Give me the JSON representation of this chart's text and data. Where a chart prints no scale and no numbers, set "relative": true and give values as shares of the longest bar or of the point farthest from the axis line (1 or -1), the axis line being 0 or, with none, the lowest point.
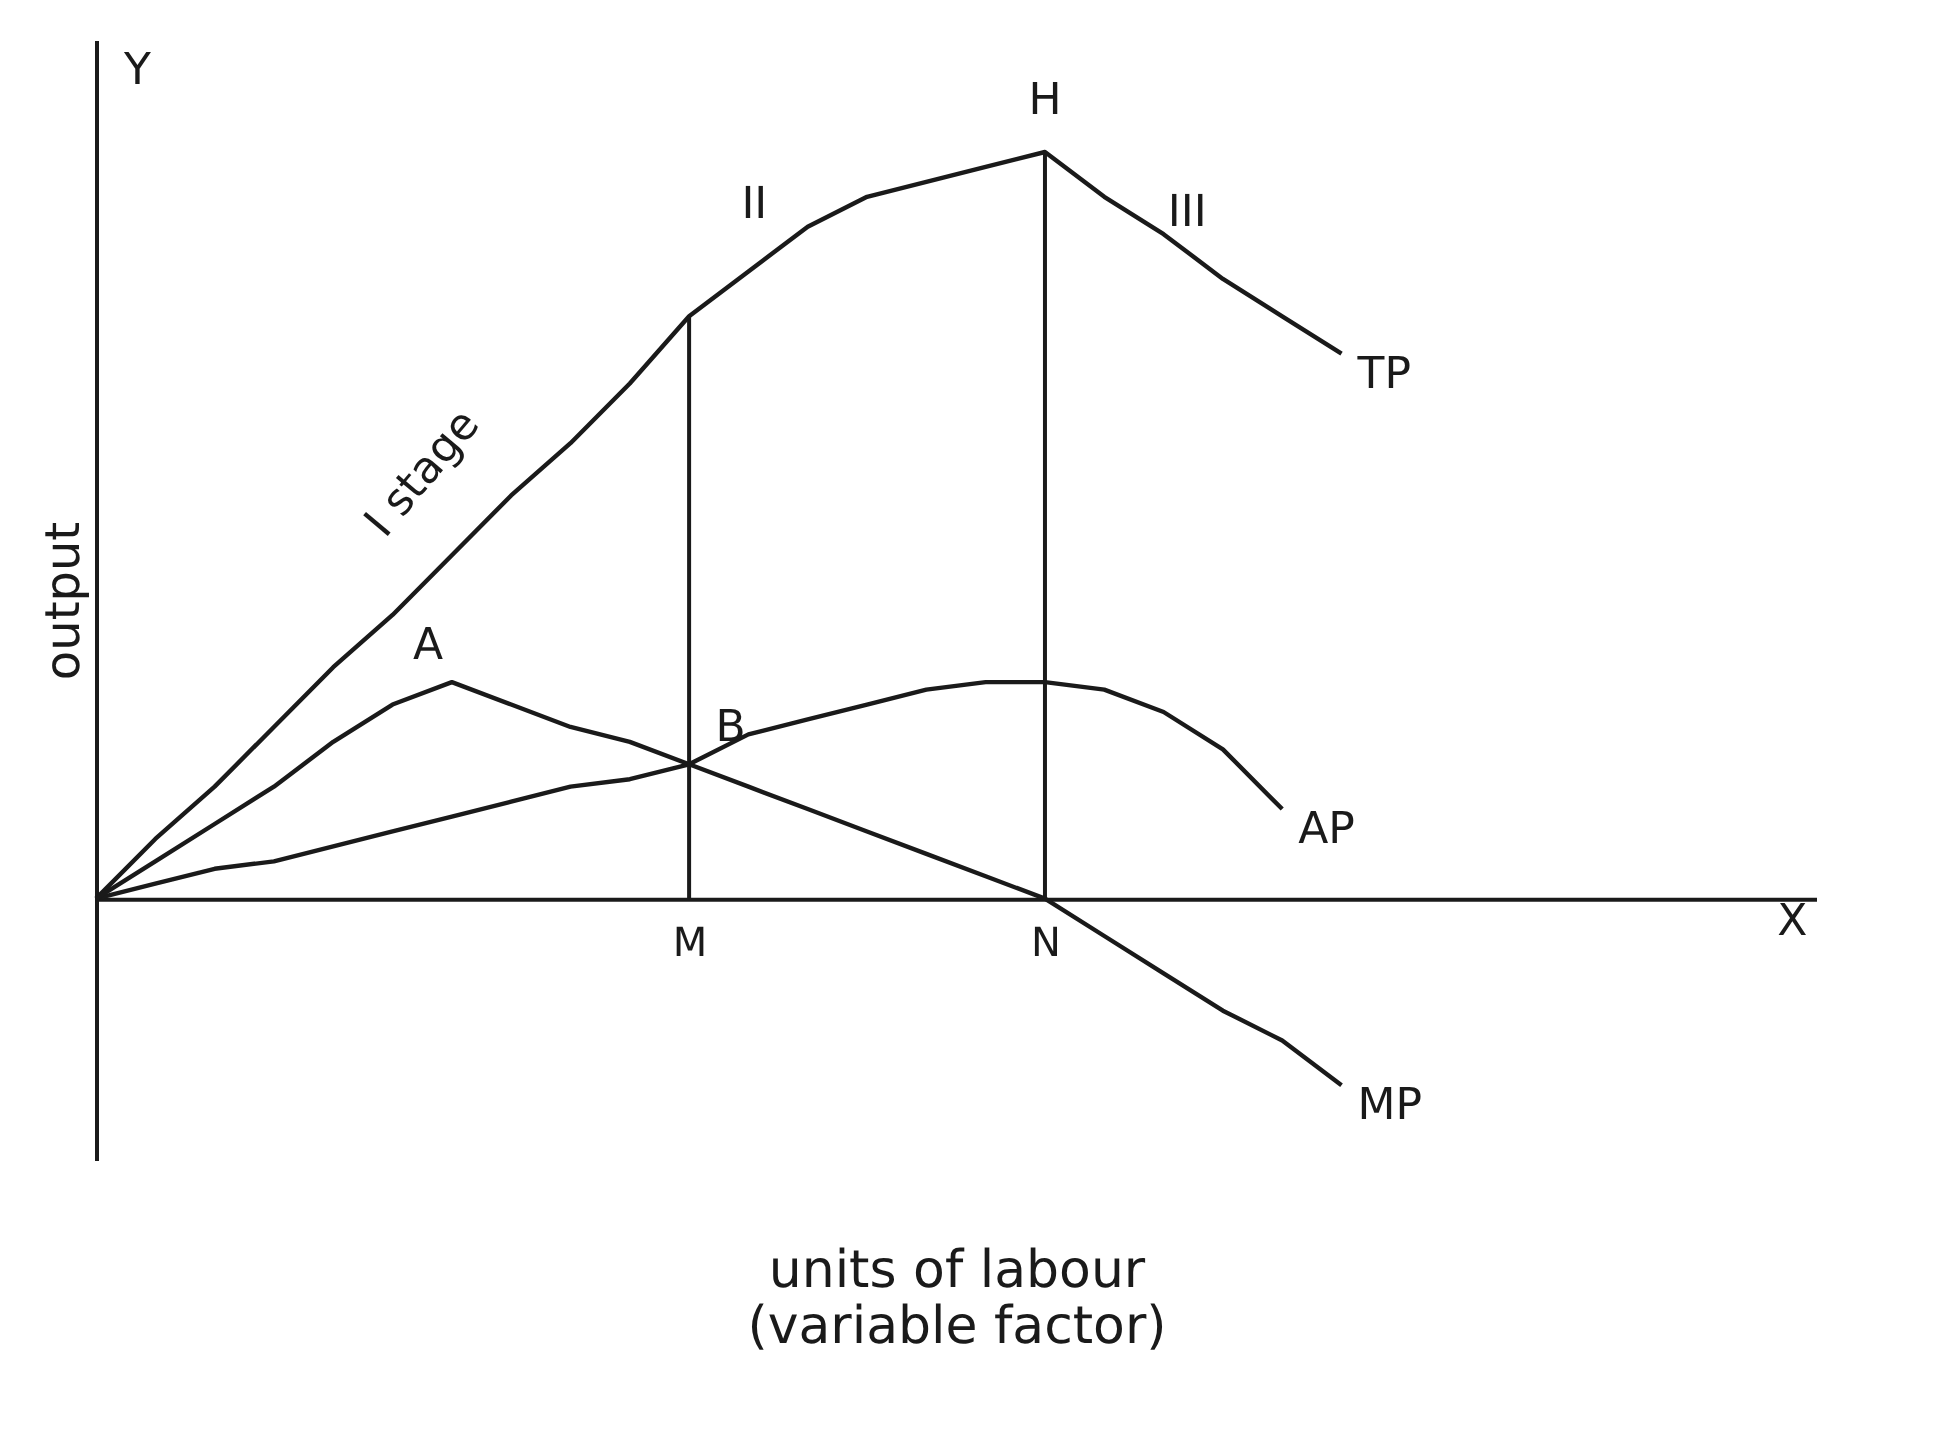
{
  "chart_data": {
    "type": "line",
    "relative": true,
    "xlabel": "units of labour\n(variable factor)",
    "ylabel": "output",
    "categories": [
      null,
      null,
      null,
      null,
      null,
      null,
      null,
      null,
      null,
      null,
      "M",
      null,
      null,
      null,
      null,
      null,
      "N",
      null,
      null,
      null,
      null,
      null
    ],
    "series": [
      {
        "name": "TP",
        "color": "#1a1a1a",
        "values": [
          0,
          0.08,
          0.15,
          0.23,
          0.31,
          0.38,
          0.46,
          0.54,
          0.61,
          0.69,
          0.78,
          0.84,
          0.9,
          0.94,
          0.96,
          0.98,
          1,
          0.94,
          0.89,
          0.83,
          0.78,
          0.73
        ]
      },
      {
        "name": "AP",
        "color": "#1a1a1a",
        "values": [
          0,
          0.02,
          0.04,
          0.05,
          0.07,
          0.09,
          0.11,
          0.13,
          0.15,
          0.16,
          0.18,
          0.22,
          0.24,
          0.26,
          0.28,
          0.29,
          0.29,
          0.28,
          0.25,
          0.2,
          0.12,
          null
        ]
      },
      {
        "name": "MP",
        "color": "#1a1a1a",
        "values": [
          0,
          0.05,
          0.1,
          0.15,
          0.21,
          0.26,
          0.29,
          0.26,
          0.23,
          0.21,
          0.18,
          0.15,
          0.12,
          0.09,
          0.06,
          0.03,
          0,
          -0.05,
          -0.1,
          -0.15,
          -0.19,
          -0.25
        ]
      }
    ],
    "ref_lines": [
      {
        "axis": "x",
        "value": "M",
        "label": null
      },
      {
        "axis": "x",
        "value": "N",
        "label": null
      }
    ],
    "annotations": [
      "I stage",
      "II",
      "III",
      "A",
      "B",
      "H",
      "Y",
      "X"
    ]
  }
}
